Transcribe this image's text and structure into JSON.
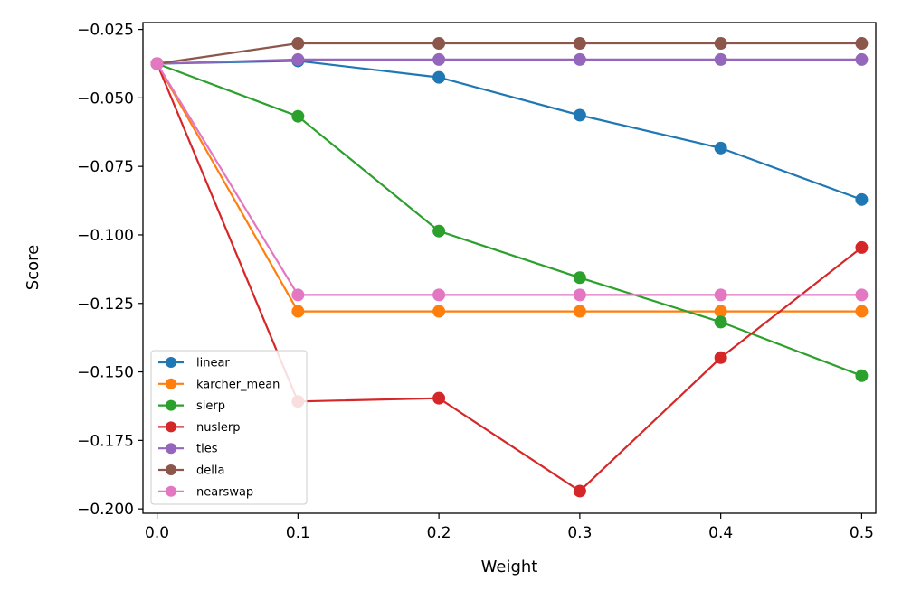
{
  "chart_data": {
    "type": "line",
    "title": "",
    "xlabel": "Weight",
    "ylabel": "Score",
    "x": [
      0.0,
      0.1,
      0.2,
      0.3,
      0.4,
      0.5
    ],
    "xlim": [
      -0.01,
      0.51
    ],
    "ylim": [
      -0.2016,
      -0.0225
    ],
    "xticks": [
      {
        "value": 0.0,
        "label": "0.0"
      },
      {
        "value": 0.1,
        "label": "0.1"
      },
      {
        "value": 0.2,
        "label": "0.2"
      },
      {
        "value": 0.3,
        "label": "0.3"
      },
      {
        "value": 0.4,
        "label": "0.4"
      },
      {
        "value": 0.5,
        "label": "0.5"
      }
    ],
    "yticks": [
      {
        "value": -0.025,
        "label": "−0.025"
      },
      {
        "value": -0.05,
        "label": "−0.050"
      },
      {
        "value": -0.075,
        "label": "−0.075"
      },
      {
        "value": -0.1,
        "label": "−0.100"
      },
      {
        "value": -0.125,
        "label": "−0.125"
      },
      {
        "value": -0.15,
        "label": "−0.150"
      },
      {
        "value": -0.175,
        "label": "−0.175"
      },
      {
        "value": -0.2,
        "label": "−0.200"
      }
    ],
    "grid": false,
    "legend_position": "lower-left",
    "series": [
      {
        "name": "linear",
        "color": "#1f77b4",
        "values": [
          -0.0375,
          -0.0365,
          -0.0425,
          -0.0563,
          -0.0683,
          -0.0871
        ]
      },
      {
        "name": "karcher_mean",
        "color": "#ff7f0e",
        "values": [
          -0.0375,
          -0.1279,
          -0.1279,
          -0.1279,
          -0.1279,
          -0.1279
        ]
      },
      {
        "name": "slerp",
        "color": "#2ca02c",
        "values": [
          -0.0375,
          -0.0567,
          -0.0986,
          -0.1156,
          -0.1318,
          -0.1514
        ]
      },
      {
        "name": "nuslerp",
        "color": "#d62728",
        "values": [
          -0.0375,
          -0.1608,
          -0.1596,
          -0.1935,
          -0.1448,
          -0.1046
        ]
      },
      {
        "name": "ties",
        "color": "#9467bd",
        "values": [
          -0.0375,
          -0.036,
          -0.036,
          -0.036,
          -0.036,
          -0.036
        ]
      },
      {
        "name": "della",
        "color": "#8c564b",
        "values": [
          -0.0375,
          -0.0301,
          -0.0301,
          -0.0301,
          -0.0301,
          -0.0301
        ]
      },
      {
        "name": "nearswap",
        "color": "#e377c2",
        "values": [
          -0.0375,
          -0.1219,
          -0.1219,
          -0.1219,
          -0.1219,
          -0.1219
        ]
      }
    ]
  }
}
